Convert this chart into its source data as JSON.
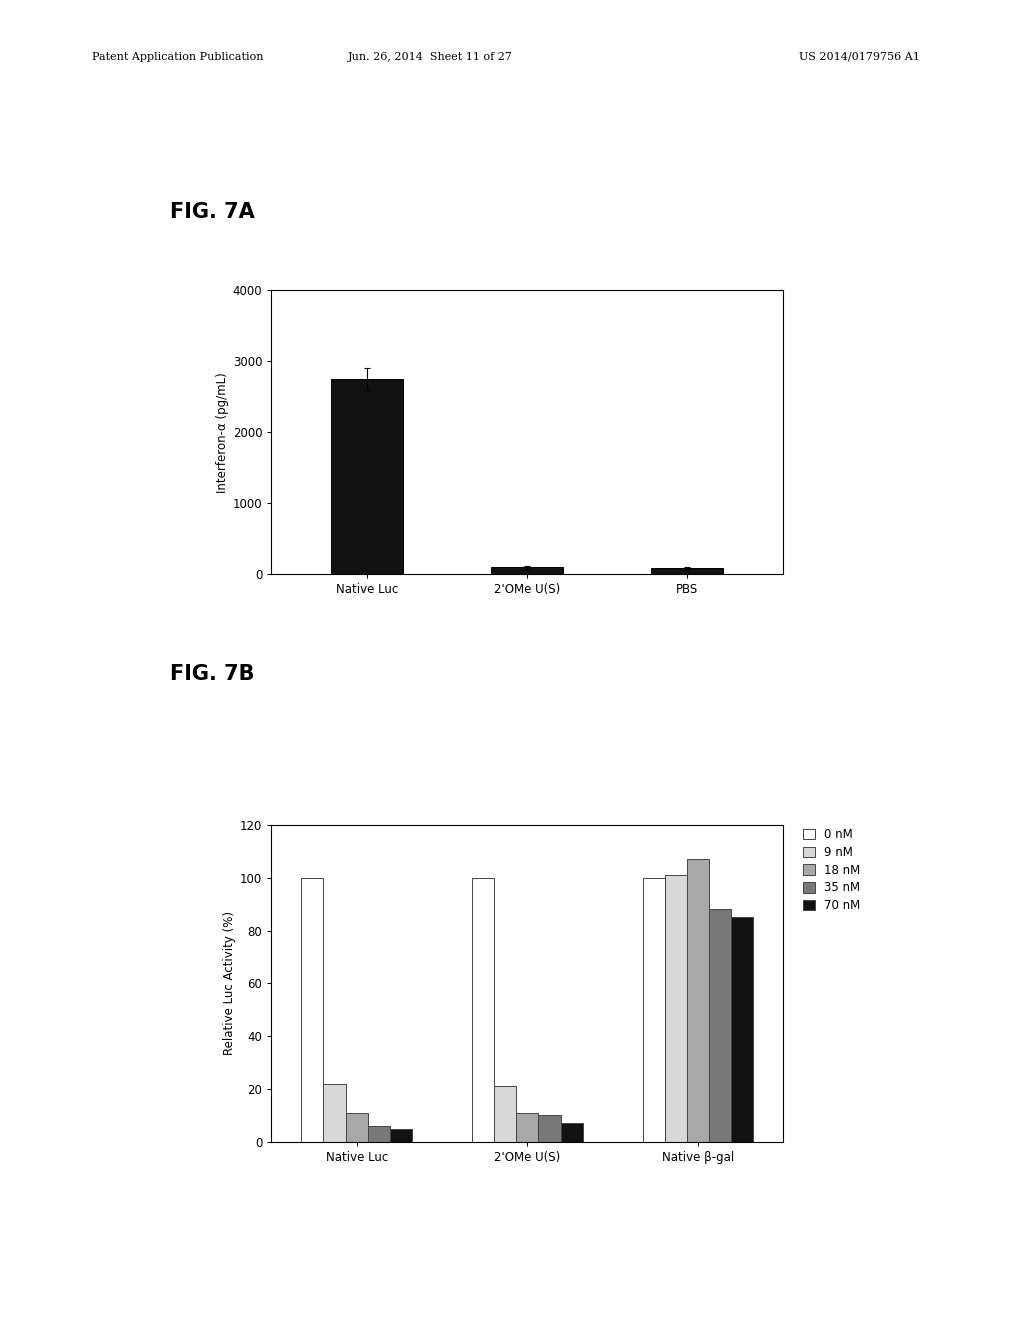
{
  "fig7a": {
    "title": "FIG. 7A",
    "categories": [
      "Native Luc",
      "2'OMe U(S)",
      "PBS"
    ],
    "values": [
      2750,
      100,
      90
    ],
    "errors": [
      150,
      20,
      15
    ],
    "bar_color": "#111111",
    "ylabel": "Interferon-α (pg/mL)",
    "ylim": [
      0,
      4000
    ],
    "yticks": [
      0,
      1000,
      2000,
      3000,
      4000
    ]
  },
  "fig7b": {
    "title": "FIG. 7B",
    "categories": [
      "Native Luc",
      "2'OMe U(S)",
      "Native β-gal"
    ],
    "series_labels": [
      "0 nM",
      "9 nM",
      "18 nM",
      "35 nM",
      "70 nM"
    ],
    "bar_colors": [
      "#ffffff",
      "#d8d8d8",
      "#a8a8a8",
      "#787878",
      "#111111"
    ],
    "bar_edge_colors": [
      "#444444",
      "#444444",
      "#444444",
      "#444444",
      "#444444"
    ],
    "values": [
      [
        100,
        100,
        100
      ],
      [
        22,
        21,
        101
      ],
      [
        11,
        11,
        107
      ],
      [
        6,
        10,
        88
      ],
      [
        5,
        7,
        85
      ]
    ],
    "ylabel": "Relative Luc Activity (%)",
    "ylim": [
      0,
      120
    ],
    "yticks": [
      0,
      20,
      40,
      60,
      80,
      100,
      120
    ]
  },
  "header_left": "Patent Application Publication",
  "header_mid": "Jun. 26, 2014  Sheet 11 of 27",
  "header_right": "US 2014/0179756 A1",
  "background_color": "#ffffff"
}
